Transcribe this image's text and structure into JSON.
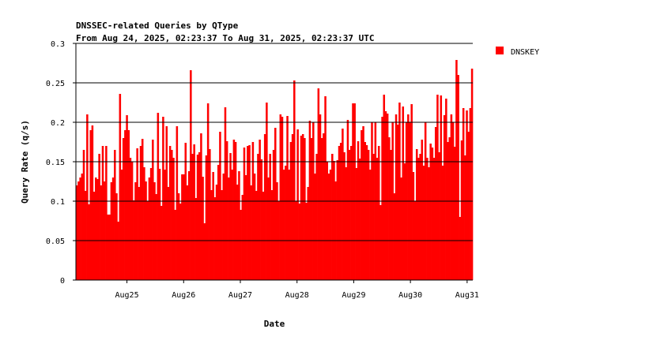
{
  "chart_data": {
    "type": "bar",
    "title": "DNSSEC-related Queries by QType",
    "subtitle": "From Aug 24, 2025, 02:23:37 To Aug 31, 2025, 02:23:37 UTC",
    "xlabel": "Date",
    "ylabel": "Query Rate (q/s)",
    "ylim": [
      0,
      0.3
    ],
    "yticks": [
      "0",
      "0.05",
      "0.1",
      "0.15",
      "0.2",
      "0.25",
      "0.3"
    ],
    "xticks": [
      "Aug25",
      "Aug26",
      "Aug27",
      "Aug28",
      "Aug29",
      "Aug30",
      "Aug31"
    ],
    "grid": "horizontal",
    "legend_position": "top-right",
    "series": [
      {
        "name": "DNSKEY",
        "color": "#ff0000",
        "values": [
          0.12,
          0.125,
          0.13,
          0.135,
          0.165,
          0.113,
          0.21,
          0.096,
          0.19,
          0.196,
          0.112,
          0.13,
          0.128,
          0.16,
          0.12,
          0.17,
          0.125,
          0.17,
          0.083,
          0.083,
          0.124,
          0.13,
          0.165,
          0.11,
          0.074,
          0.236,
          0.14,
          0.18,
          0.19,
          0.209,
          0.19,
          0.155,
          0.15,
          0.101,
          0.124,
          0.167,
          0.118,
          0.17,
          0.179,
          0.143,
          0.125,
          0.1,
          0.13,
          0.142,
          0.178,
          0.124,
          0.109,
          0.212,
          0.141,
          0.094,
          0.207,
          0.14,
          0.195,
          0.118,
          0.17,
          0.165,
          0.155,
          0.089,
          0.195,
          0.11,
          0.097,
          0.134,
          0.134,
          0.174,
          0.12,
          0.138,
          0.266,
          0.16,
          0.172,
          0.104,
          0.159,
          0.162,
          0.186,
          0.131,
          0.072,
          0.158,
          0.224,
          0.166,
          0.114,
          0.137,
          0.105,
          0.121,
          0.146,
          0.188,
          0.114,
          0.135,
          0.219,
          0.176,
          0.13,
          0.161,
          0.14,
          0.178,
          0.175,
          0.121,
          0.138,
          0.089,
          0.108,
          0.168,
          0.133,
          0.17,
          0.171,
          0.12,
          0.175,
          0.135,
          0.113,
          0.16,
          0.178,
          0.153,
          0.112,
          0.185,
          0.225,
          0.13,
          0.16,
          0.114,
          0.165,
          0.193,
          0.124,
          0.1,
          0.21,
          0.207,
          0.14,
          0.145,
          0.208,
          0.14,
          0.175,
          0.185,
          0.253,
          0.1,
          0.191,
          0.097,
          0.183,
          0.185,
          0.18,
          0.098,
          0.118,
          0.202,
          0.18,
          0.2,
          0.135,
          0.16,
          0.243,
          0.21,
          0.18,
          0.186,
          0.233,
          0.15,
          0.135,
          0.14,
          0.16,
          0.151,
          0.125,
          0.152,
          0.17,
          0.174,
          0.192,
          0.162,
          0.143,
          0.203,
          0.165,
          0.17,
          0.224,
          0.224,
          0.142,
          0.176,
          0.154,
          0.19,
          0.195,
          0.175,
          0.171,
          0.165,
          0.14,
          0.2,
          0.16,
          0.2,
          0.155,
          0.17,
          0.095,
          0.207,
          0.235,
          0.214,
          0.211,
          0.181,
          0.165,
          0.2,
          0.11,
          0.21,
          0.197,
          0.225,
          0.13,
          0.22,
          0.148,
          0.2,
          0.21,
          0.2,
          0.223,
          0.137,
          0.1,
          0.166,
          0.155,
          0.16,
          0.178,
          0.145,
          0.2,
          0.155,
          0.143,
          0.173,
          0.168,
          0.155,
          0.194,
          0.235,
          0.162,
          0.234,
          0.145,
          0.209,
          0.23,
          0.175,
          0.181,
          0.21,
          0.2,
          0.169,
          0.279,
          0.26,
          0.08,
          0.177,
          0.218,
          0.158,
          0.215,
          0.188,
          0.218,
          0.268
        ]
      }
    ]
  }
}
